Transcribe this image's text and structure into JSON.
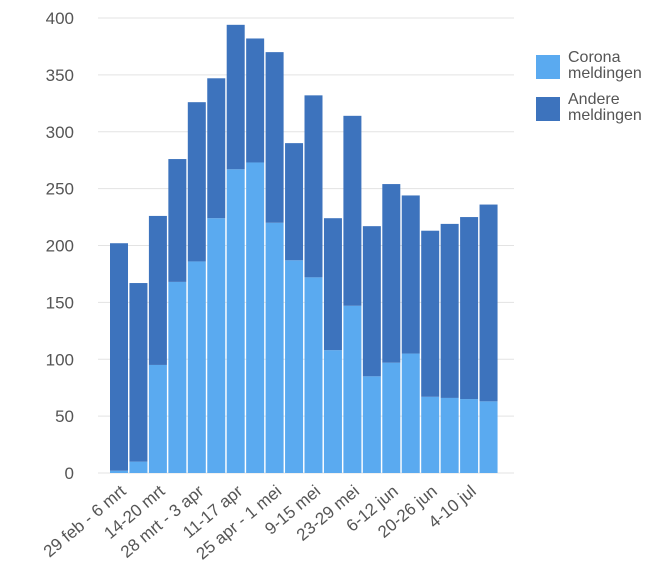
{
  "chart_data": {
    "type": "bar",
    "stacked": true,
    "categories": [
      "29 feb - 6 mrt",
      "",
      "14-20 mrt",
      "",
      "28 mrt - 3 apr",
      "",
      "11-17 apr",
      "",
      "25 apr - 1 mei",
      "",
      "9-15 mei",
      "",
      "23-29 mei",
      "",
      "6-12 jun",
      "",
      "20-26 jun",
      "",
      "4-10 jul",
      ""
    ],
    "series": [
      {
        "name": "Corona meldingen",
        "color": "#5aaaf0",
        "values": [
          2,
          10,
          95,
          168,
          186,
          224,
          267,
          273,
          220,
          187,
          172,
          108,
          147,
          85,
          97,
          105,
          67,
          66,
          65,
          63
        ]
      },
      {
        "name": "Andere meldingen",
        "color": "#3d73bd",
        "values": [
          200,
          157,
          131,
          108,
          140,
          123,
          127,
          109,
          150,
          103,
          160,
          116,
          167,
          132,
          157,
          139,
          146,
          153,
          160,
          173
        ]
      }
    ],
    "ylim": [
      0,
      400
    ],
    "yticks": [
      "0",
      "50",
      "100",
      "150",
      "200",
      "250",
      "300",
      "350",
      "400"
    ],
    "grid": true,
    "legend": "right"
  }
}
